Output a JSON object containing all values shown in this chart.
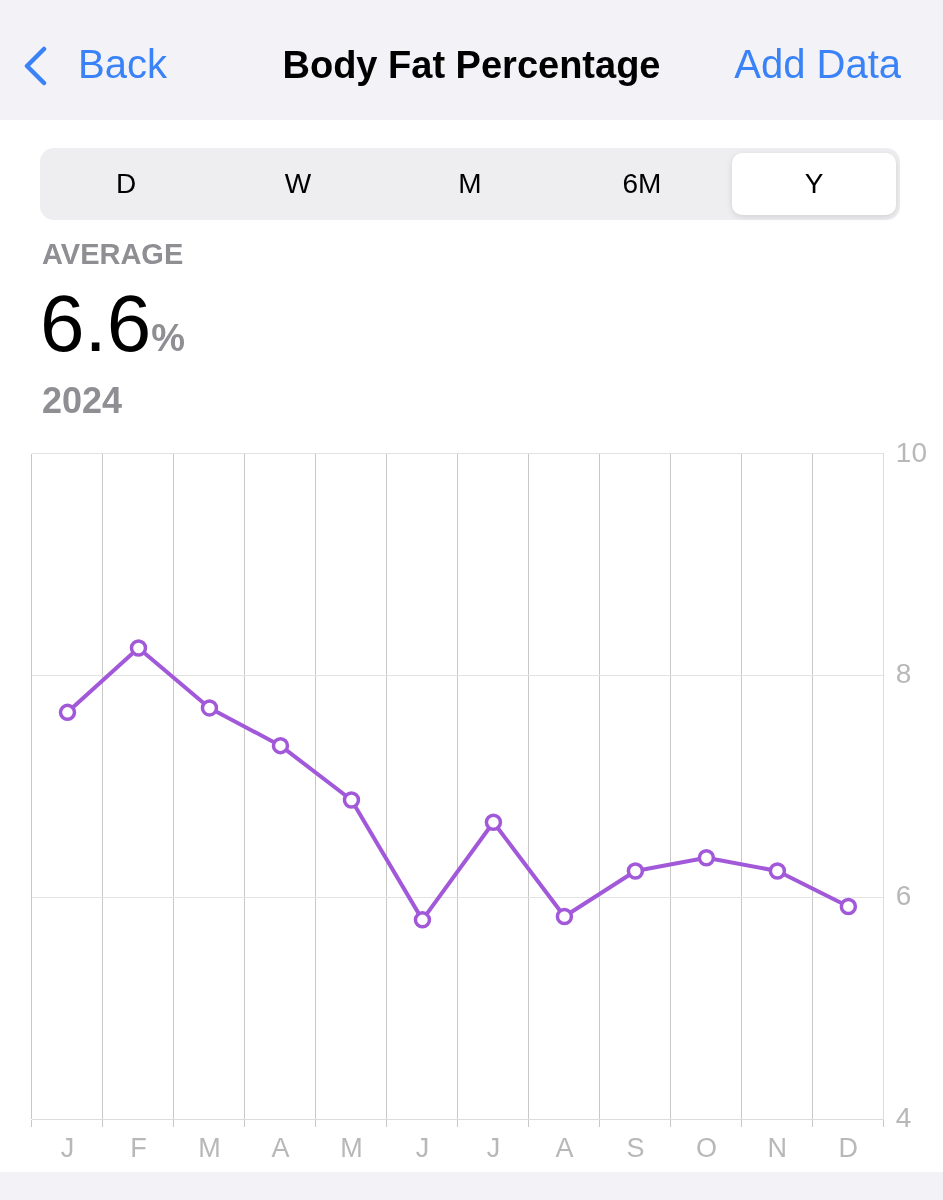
{
  "chart_data": {
    "type": "line",
    "title": "Body Fat Percentage",
    "annotations": [
      "Back",
      "Add Data",
      "D",
      "W",
      "M",
      "6M",
      "Y",
      "AVERAGE",
      "6.6%",
      "2024"
    ],
    "categories": [
      "J",
      "F",
      "M",
      "A",
      "M",
      "J",
      "J",
      "A",
      "S",
      "O",
      "N",
      "D"
    ],
    "series": [
      {
        "color": "#a259d9",
        "values": [
          7.67,
          8.25,
          7.71,
          7.37,
          6.88,
          5.8,
          6.68,
          5.83,
          6.24,
          6.36,
          6.24,
          5.92
        ]
      }
    ],
    "ylim": [
      4,
      10
    ],
    "yticks": [
      4,
      6,
      8,
      10
    ],
    "grid": true,
    "marker": "circle",
    "line_style": "solid",
    "legend": false
  }
}
